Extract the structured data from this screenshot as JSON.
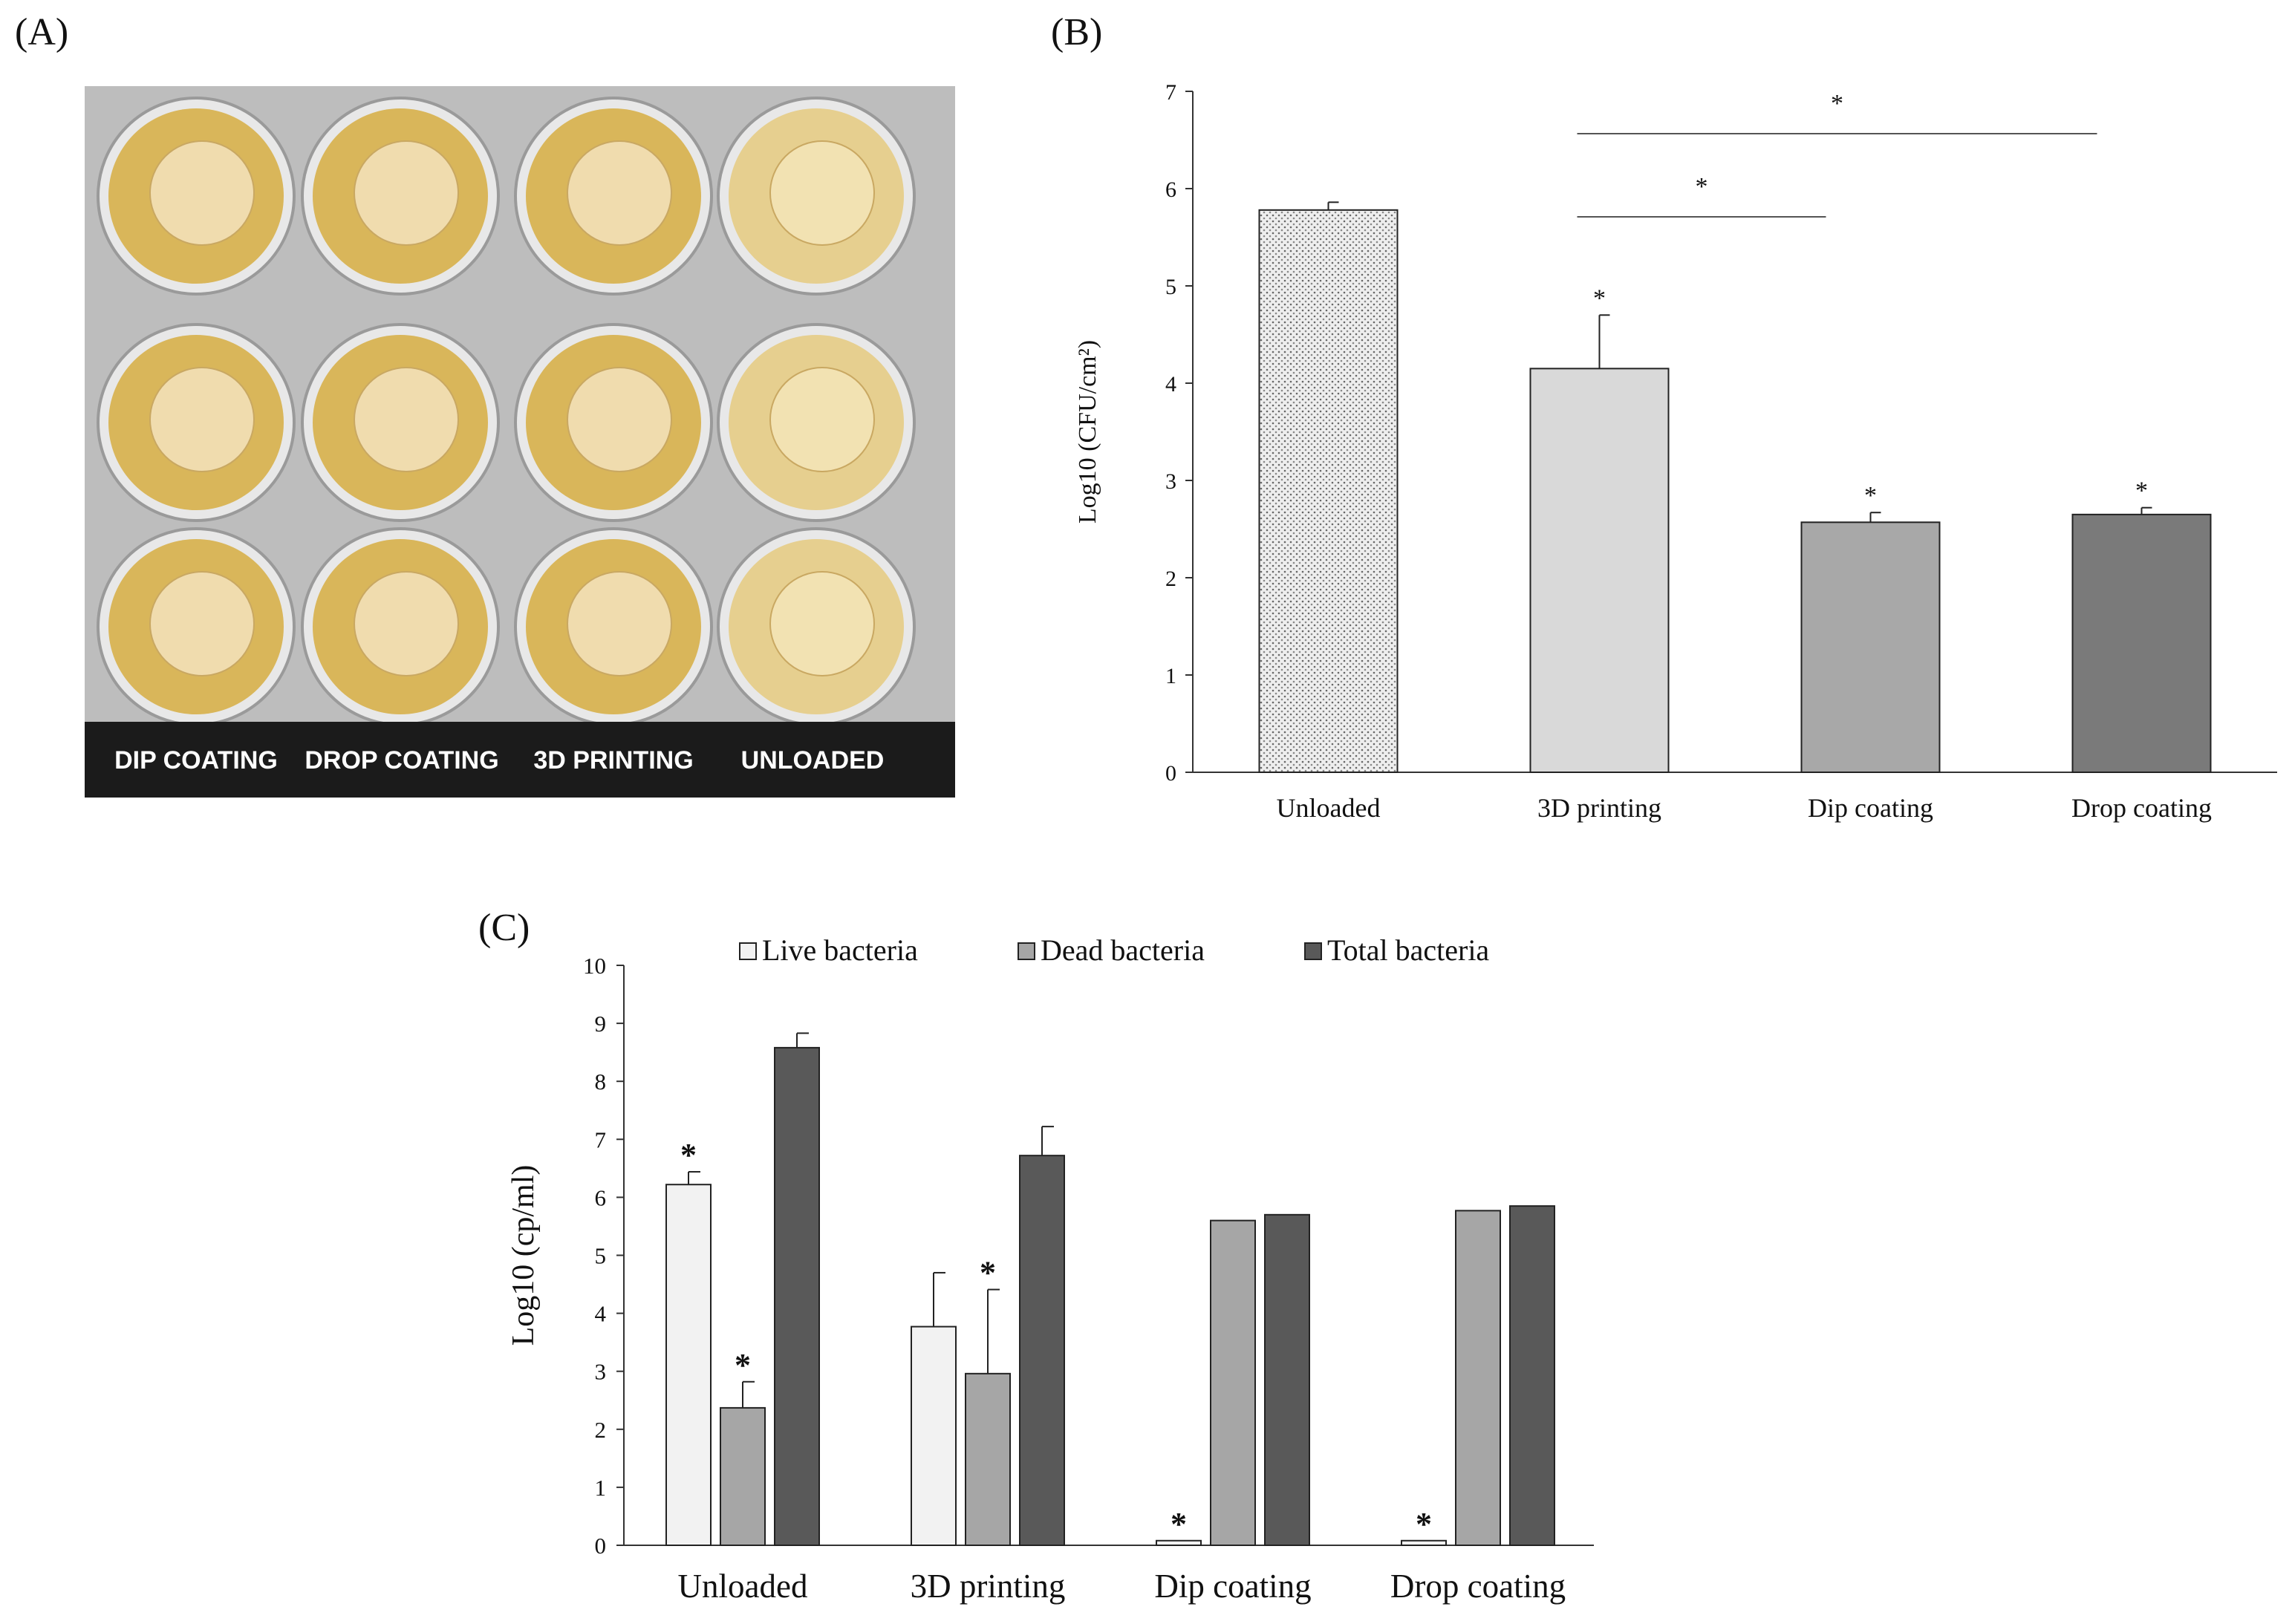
{
  "panels": {
    "a": {
      "label": "(A)",
      "photo_captions": [
        "DIP COATING",
        "DROP COATING",
        "3D PRINTING",
        "UNLOADED"
      ],
      "plate_colors": {
        "plate": "#c9c9c9",
        "liquid": "#d9b65a",
        "disc": "#f0dcae",
        "caption_bar": "#1b1b1b"
      }
    },
    "b": {
      "label": "(B)"
    },
    "c": {
      "label": "(C)"
    }
  },
  "chart_data": [
    {
      "id": "B",
      "type": "bar",
      "categories": [
        "Unloaded",
        "3D printing",
        "Dip coating",
        "Drop coating"
      ],
      "values": [
        5.78,
        4.15,
        2.57,
        2.65
      ],
      "errors": [
        0.08,
        0.55,
        0.1,
        0.07
      ],
      "bar_colors": [
        "#e4e4e4",
        "#d9d9d9",
        "#a8a8a8",
        "#7a7a7a"
      ],
      "significance": [
        "",
        "*",
        "*",
        "*"
      ],
      "brackets": [
        {
          "from": "3D printing",
          "to": "Dip coating",
          "label": "*"
        },
        {
          "from": "3D printing",
          "to": "Drop coating",
          "label": "*"
        }
      ],
      "ylabel": "Log10 (CFU/cm²)",
      "xlabel": "",
      "ylim": [
        0,
        7
      ],
      "yticks": [
        "0",
        "1",
        "2",
        "3",
        "4",
        "5",
        "6",
        "7"
      ]
    },
    {
      "id": "C",
      "type": "bar",
      "categories": [
        "Unloaded",
        "3D printing",
        "Dip coating",
        "Drop coating"
      ],
      "series": [
        {
          "name": "Live bacteria",
          "color": "#f2f2f2",
          "values": [
            6.22,
            3.77,
            0.08,
            0.08
          ],
          "errors": [
            0.22,
            0.93,
            0,
            0
          ],
          "significance": [
            "*",
            "",
            "*",
            "*"
          ]
        },
        {
          "name": "Dead bacteria",
          "color": "#a6a6a6",
          "values": [
            2.37,
            2.96,
            5.6,
            5.77
          ],
          "errors": [
            0.45,
            1.45,
            0,
            0
          ],
          "significance": [
            "*",
            "*",
            "",
            ""
          ]
        },
        {
          "name": "Total bacteria",
          "color": "#595959",
          "values": [
            8.58,
            6.72,
            5.7,
            5.85
          ],
          "errors": [
            0.25,
            0.5,
            0,
            0
          ],
          "significance": [
            "",
            "",
            "",
            ""
          ]
        }
      ],
      "ylabel": "Log10 (cp/ml)",
      "xlabel": "",
      "ylim": [
        0,
        10
      ],
      "yticks": [
        "0",
        "1",
        "2",
        "3",
        "4",
        "5",
        "6",
        "7",
        "8",
        "9",
        "10"
      ],
      "legend": "top"
    }
  ]
}
